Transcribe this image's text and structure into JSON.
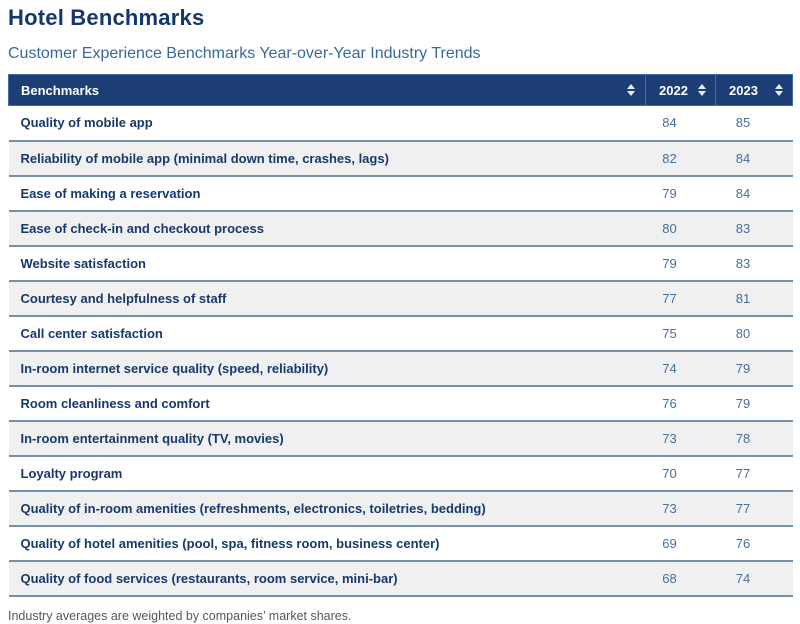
{
  "header": {
    "title": "Hotel Benchmarks",
    "subtitle": "Customer Experience Benchmarks Year-over-Year Industry Trends"
  },
  "table": {
    "columns": [
      {
        "label": "Benchmarks",
        "sort_icon": "sort-arrows"
      },
      {
        "label": "2022",
        "sort_icon": "sort-arrows"
      },
      {
        "label": "2023",
        "sort_icon": "sort-arrows"
      }
    ]
  },
  "chart_data": {
    "type": "table",
    "title": "Hotel Benchmarks",
    "subtitle": "Customer Experience Benchmarks Year-over-Year Industry Trends",
    "columns": [
      "Benchmarks",
      "2022",
      "2023"
    ],
    "rows": [
      {
        "label": "Quality of mobile app",
        "2022": 84,
        "2023": 85
      },
      {
        "label": "Reliability of mobile app (minimal down time, crashes, lags)",
        "2022": 82,
        "2023": 84
      },
      {
        "label": "Ease of making a reservation",
        "2022": 79,
        "2023": 84
      },
      {
        "label": "Ease of check-in and checkout process",
        "2022": 80,
        "2023": 83
      },
      {
        "label": "Website satisfaction",
        "2022": 79,
        "2023": 83
      },
      {
        "label": "Courtesy and helpfulness of staff",
        "2022": 77,
        "2023": 81
      },
      {
        "label": "Call center satisfaction",
        "2022": 75,
        "2023": 80
      },
      {
        "label": "In-room internet service quality (speed, reliability)",
        "2022": 74,
        "2023": 79
      },
      {
        "label": "Room cleanliness and comfort",
        "2022": 76,
        "2023": 79
      },
      {
        "label": "In-room entertainment quality (TV, movies)",
        "2022": 73,
        "2023": 78
      },
      {
        "label": "Loyalty program",
        "2022": 70,
        "2023": 77
      },
      {
        "label": "Quality of in-room amenities (refreshments, electronics, toiletries, bedding)",
        "2022": 73,
        "2023": 77
      },
      {
        "label": "Quality of hotel amenities (pool, spa, fitness room, business center)",
        "2022": 69,
        "2023": 76
      },
      {
        "label": "Quality of food services (restaurants, room service, mini-bar)",
        "2022": 68,
        "2023": 74
      }
    ]
  },
  "footnote": "Industry averages are weighted by companies’ market shares.",
  "colors": {
    "title": "#14386e",
    "subtitle": "#35699e",
    "header_bg": "#1c3e74",
    "header_border": "#3f6cab",
    "header_text": "#ffffff",
    "row_label_text": "#17396d",
    "value_text": "#47709c",
    "row_alt_bg": "#f0f0f0",
    "row_border": "#7391ab",
    "footnote_text": "#55575b"
  }
}
